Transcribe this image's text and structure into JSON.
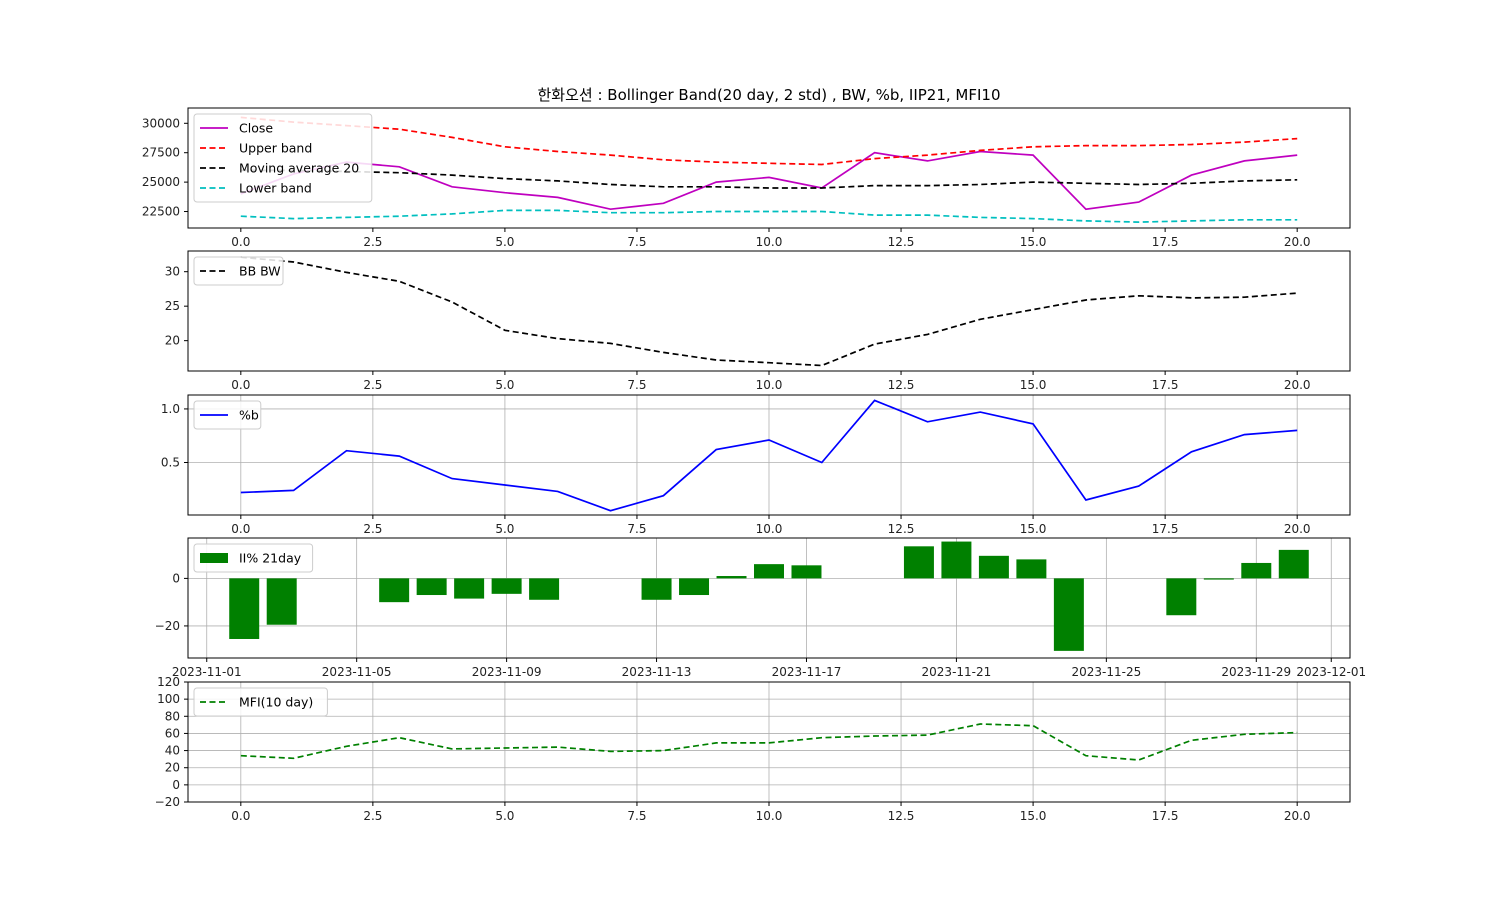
{
  "figure": {
    "title": "한화오션 : Bollinger Band(20 day, 2 std) , BW, %b, IIP21, MFI10"
  },
  "chart_data": [
    {
      "type": "line",
      "id": "bb",
      "x": [
        0,
        1,
        2,
        3,
        4,
        5,
        6,
        7,
        8,
        9,
        10,
        11,
        12,
        13,
        14,
        15,
        16,
        17,
        18,
        19,
        20
      ],
      "xlim": [
        -1,
        21
      ],
      "ylim": [
        21100,
        31300
      ],
      "xticks": [
        0,
        2.5,
        5,
        7.5,
        10,
        12.5,
        15,
        17.5,
        20
      ],
      "xtick_labels": [
        "0.0",
        "2.5",
        "5.0",
        "7.5",
        "10.0",
        "12.5",
        "15.0",
        "17.5",
        "20.0"
      ],
      "yticks": [
        22500,
        25000,
        27500,
        30000
      ],
      "ytick_labels": [
        "22500",
        "25000",
        "27500",
        "30000"
      ],
      "grid": false,
      "legend": "upper left",
      "series": [
        {
          "name": "Close",
          "color": "#bf00bf",
          "dash": "solid",
          "values": [
            24000,
            25700,
            26700,
            26300,
            24600,
            24100,
            23700,
            22700,
            23200,
            25000,
            25400,
            24500,
            27500,
            26800,
            27600,
            27300,
            22700,
            23300,
            25600,
            26800,
            27300
          ]
        },
        {
          "name": "Upper band",
          "color": "#ff0000",
          "dash": "dashed",
          "values": [
            30500,
            30100,
            29800,
            29500,
            28800,
            28000,
            27600,
            27300,
            26900,
            26700,
            26600,
            26500,
            27000,
            27300,
            27700,
            28000,
            28100,
            28100,
            28200,
            28400,
            28700
          ]
        },
        {
          "name": "Moving average 20",
          "color": "#000000",
          "dash": "dashed",
          "values": [
            26000,
            26000,
            25900,
            25800,
            25600,
            25300,
            25100,
            24800,
            24600,
            24600,
            24500,
            24500,
            24700,
            24700,
            24800,
            25000,
            24900,
            24800,
            24900,
            25100,
            25200
          ]
        },
        {
          "name": "Lower band",
          "color": "#00bfbf",
          "dash": "dashed",
          "values": [
            22100,
            21900,
            22000,
            22100,
            22300,
            22600,
            22600,
            22400,
            22400,
            22500,
            22500,
            22500,
            22200,
            22200,
            22000,
            21900,
            21700,
            21600,
            21700,
            21800,
            21800
          ]
        }
      ]
    },
    {
      "type": "line",
      "id": "bw",
      "x": [
        0,
        1,
        2,
        3,
        4,
        5,
        6,
        7,
        8,
        9,
        10,
        11,
        12,
        13,
        14,
        15,
        16,
        17,
        18,
        19,
        20
      ],
      "xlim": [
        -1,
        21
      ],
      "ylim": [
        15.6,
        33.0
      ],
      "xticks": [
        0,
        2.5,
        5,
        7.5,
        10,
        12.5,
        15,
        17.5,
        20
      ],
      "xtick_labels": [
        "0.0",
        "2.5",
        "5.0",
        "7.5",
        "10.0",
        "12.5",
        "15.0",
        "17.5",
        "20.0"
      ],
      "yticks": [
        20,
        25,
        30
      ],
      "ytick_labels": [
        "20",
        "25",
        "30"
      ],
      "grid": false,
      "legend": "upper left",
      "series": [
        {
          "name": "BB BW",
          "color": "#000000",
          "dash": "dashed",
          "values": [
            32.1,
            31.4,
            29.9,
            28.6,
            25.6,
            21.5,
            20.3,
            19.6,
            18.3,
            17.2,
            16.8,
            16.4,
            19.5,
            20.9,
            23.1,
            24.5,
            25.9,
            26.5,
            26.2,
            26.3,
            26.9
          ]
        }
      ]
    },
    {
      "type": "line",
      "id": "pb",
      "x": [
        0,
        1,
        2,
        3,
        4,
        5,
        6,
        7,
        8,
        9,
        10,
        11,
        12,
        13,
        14,
        15,
        16,
        17,
        18,
        19,
        20
      ],
      "xlim": [
        -1,
        21
      ],
      "ylim": [
        0.01,
        1.13
      ],
      "xticks": [
        0,
        2.5,
        5,
        7.5,
        10,
        12.5,
        15,
        17.5,
        20
      ],
      "xtick_labels": [
        "0.0",
        "2.5",
        "5.0",
        "7.5",
        "10.0",
        "12.5",
        "15.0",
        "17.5",
        "20.0"
      ],
      "yticks": [
        0.5,
        1.0
      ],
      "ytick_labels": [
        "0.5",
        "1.0"
      ],
      "grid": true,
      "legend": "upper left",
      "series": [
        {
          "name": "%b",
          "color": "#0000ff",
          "dash": "solid",
          "values": [
            0.22,
            0.24,
            0.61,
            0.56,
            0.35,
            0.29,
            0.23,
            0.05,
            0.19,
            0.62,
            0.71,
            0.5,
            1.08,
            0.88,
            0.97,
            0.86,
            0.15,
            0.28,
            0.6,
            0.76,
            0.8
          ]
        }
      ]
    },
    {
      "type": "bar",
      "id": "iip",
      "x": [
        "2023-11-02",
        "2023-11-03",
        "2023-11-06",
        "2023-11-07",
        "2023-11-08",
        "2023-11-09",
        "2023-11-10",
        "2023-11-13",
        "2023-11-14",
        "2023-11-15",
        "2023-11-16",
        "2023-11-17",
        "2023-11-20",
        "2023-11-21",
        "2023-11-22",
        "2023-11-23",
        "2023-11-24",
        "2023-11-27",
        "2023-11-28",
        "2023-11-29",
        "2023-11-30"
      ],
      "xlim": [
        "2023-10-31T12:00",
        "2023-12-01T12:00"
      ],
      "ylim": [
        -33.5,
        17
      ],
      "xticks": [
        "2023-11-01",
        "2023-11-05",
        "2023-11-09",
        "2023-11-13",
        "2023-11-17",
        "2023-11-21",
        "2023-11-25",
        "2023-11-29",
        "2023-12-01"
      ],
      "xtick_labels": [
        "2023-11-01",
        "2023-11-05",
        "2023-11-09",
        "2023-11-13",
        "2023-11-17",
        "2023-11-21",
        "2023-11-25",
        "2023-11-29",
        "2023-12-01"
      ],
      "yticks": [
        -20,
        0
      ],
      "ytick_labels": [
        "−20",
        "0"
      ],
      "grid": true,
      "legend": "upper left",
      "series": [
        {
          "name": "II% 21day",
          "color": "#008000",
          "values": [
            -25.5,
            -19.5,
            -10,
            -7,
            -8.5,
            -6.5,
            -9,
            -9,
            -7,
            1,
            6,
            5.5,
            13.5,
            15.5,
            9.5,
            8,
            -30.5,
            -15.5,
            -0.5,
            6.5,
            12
          ]
        }
      ]
    },
    {
      "type": "line",
      "id": "mfi",
      "x": [
        0,
        1,
        2,
        3,
        4,
        5,
        6,
        7,
        8,
        9,
        10,
        11,
        12,
        13,
        14,
        15,
        16,
        17,
        18,
        19,
        20
      ],
      "xlim": [
        -1,
        21
      ],
      "ylim": [
        -20,
        120
      ],
      "xticks": [
        0,
        2.5,
        5,
        7.5,
        10,
        12.5,
        15,
        17.5,
        20
      ],
      "xtick_labels": [
        "0.0",
        "2.5",
        "5.0",
        "7.5",
        "10.0",
        "12.5",
        "15.0",
        "17.5",
        "20.0"
      ],
      "yticks": [
        -20,
        0,
        20,
        40,
        60,
        80,
        100,
        120
      ],
      "ytick_labels": [
        "−20",
        "0",
        "20",
        "40",
        "60",
        "80",
        "100",
        "120"
      ],
      "grid": true,
      "legend": "upper left",
      "series": [
        {
          "name": "MFI(10 day)",
          "color": "#008000",
          "dash": "dashed",
          "values": [
            34,
            31,
            45,
            55,
            42,
            43,
            44,
            39,
            40,
            49,
            49,
            55,
            57,
            58,
            71,
            69,
            34,
            29,
            52,
            59,
            61
          ]
        }
      ]
    }
  ]
}
